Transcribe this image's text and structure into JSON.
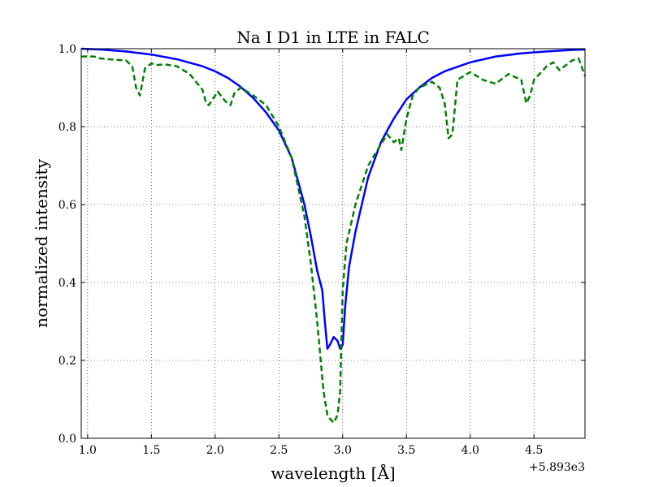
{
  "chart_data": {
    "type": "line",
    "title": "Na I D1 in LTE in FALC",
    "xlabel": "wavelength [Å]",
    "ylabel": "normalized intensity",
    "x_offset_label": "+5.893e3",
    "xlim": [
      0.95,
      4.9
    ],
    "ylim": [
      0.0,
      1.0
    ],
    "xticks": [
      1.0,
      1.5,
      2.0,
      2.5,
      3.0,
      3.5,
      4.0,
      4.5
    ],
    "xtick_labels": [
      "1.0",
      "1.5",
      "2.0",
      "2.5",
      "3.0",
      "3.5",
      "4.0",
      "4.5"
    ],
    "yticks": [
      0.0,
      0.2,
      0.4,
      0.6,
      0.8,
      1.0
    ],
    "ytick_labels": [
      "0.0",
      "0.2",
      "0.4",
      "0.6",
      "0.8",
      "1.0"
    ],
    "grid": true,
    "series": [
      {
        "color": "#0000ff",
        "style": "solid",
        "x": [
          0.95,
          1.1,
          1.3,
          1.5,
          1.7,
          1.9,
          2.0,
          2.1,
          2.2,
          2.3,
          2.4,
          2.5,
          2.6,
          2.7,
          2.75,
          2.8,
          2.84,
          2.86,
          2.88,
          2.9,
          2.93,
          2.96,
          2.98,
          3.0,
          3.02,
          3.05,
          3.1,
          3.2,
          3.3,
          3.4,
          3.5,
          3.6,
          3.7,
          3.8,
          4.0,
          4.2,
          4.4,
          4.6,
          4.8,
          4.9
        ],
        "y": [
          1.0,
          0.998,
          0.993,
          0.985,
          0.973,
          0.955,
          0.942,
          0.925,
          0.902,
          0.873,
          0.836,
          0.79,
          0.72,
          0.6,
          0.52,
          0.43,
          0.38,
          0.3,
          0.23,
          0.24,
          0.26,
          0.25,
          0.23,
          0.24,
          0.34,
          0.44,
          0.53,
          0.67,
          0.76,
          0.82,
          0.87,
          0.9,
          0.925,
          0.942,
          0.965,
          0.98,
          0.988,
          0.993,
          0.997,
          0.998
        ]
      },
      {
        "color": "#008000",
        "style": "dashed",
        "x": [
          0.95,
          1.05,
          1.1,
          1.2,
          1.3,
          1.35,
          1.38,
          1.41,
          1.45,
          1.5,
          1.55,
          1.6,
          1.7,
          1.8,
          1.9,
          1.93,
          1.95,
          1.98,
          2.02,
          2.08,
          2.12,
          2.15,
          2.2,
          2.3,
          2.4,
          2.5,
          2.6,
          2.7,
          2.75,
          2.8,
          2.85,
          2.88,
          2.9,
          2.93,
          2.96,
          2.98,
          3.0,
          3.03,
          3.1,
          3.2,
          3.3,
          3.35,
          3.4,
          3.44,
          3.46,
          3.5,
          3.55,
          3.6,
          3.7,
          3.76,
          3.8,
          3.83,
          3.86,
          3.9,
          4.0,
          4.05,
          4.1,
          4.2,
          4.3,
          4.4,
          4.44,
          4.47,
          4.5,
          4.6,
          4.65,
          4.7,
          4.8,
          4.85,
          4.9
        ],
        "y": [
          0.98,
          0.98,
          0.975,
          0.972,
          0.97,
          0.955,
          0.9,
          0.88,
          0.95,
          0.962,
          0.958,
          0.96,
          0.955,
          0.935,
          0.895,
          0.86,
          0.855,
          0.87,
          0.89,
          0.865,
          0.855,
          0.885,
          0.9,
          0.88,
          0.855,
          0.8,
          0.72,
          0.57,
          0.45,
          0.3,
          0.12,
          0.06,
          0.05,
          0.04,
          0.06,
          0.12,
          0.38,
          0.5,
          0.6,
          0.7,
          0.755,
          0.78,
          0.76,
          0.77,
          0.74,
          0.82,
          0.88,
          0.9,
          0.915,
          0.9,
          0.86,
          0.77,
          0.78,
          0.92,
          0.94,
          0.93,
          0.92,
          0.91,
          0.935,
          0.92,
          0.86,
          0.88,
          0.92,
          0.955,
          0.965,
          0.945,
          0.97,
          0.975,
          0.93
        ]
      }
    ]
  }
}
